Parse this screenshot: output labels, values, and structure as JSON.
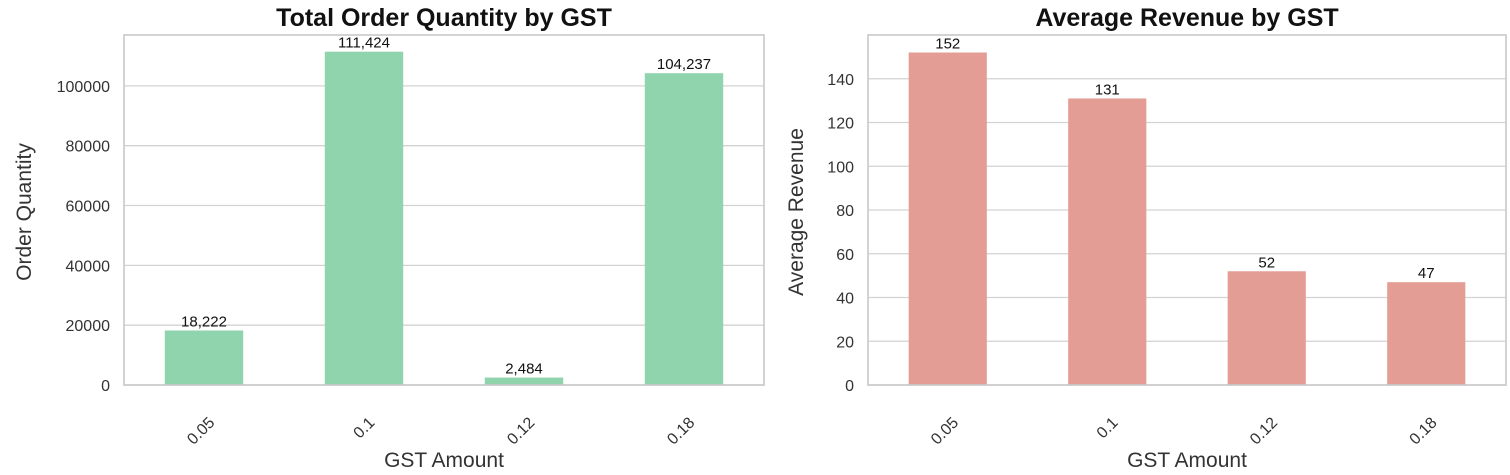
{
  "chart_data": [
    {
      "type": "bar",
      "title": "Total Order Quantity by GST",
      "xlabel": "GST Amount",
      "ylabel": "Order Quantity",
      "categories": [
        "0.05",
        "0.1",
        "0.12",
        "0.18"
      ],
      "values": [
        18222,
        111424,
        2484,
        104237
      ],
      "data_labels": [
        "18,222",
        "111,424",
        "2,484",
        "104,237"
      ],
      "yticks": [
        0,
        20000,
        40000,
        60000,
        80000,
        100000
      ],
      "ylim": [
        0,
        117000
      ],
      "grid": true,
      "x_tick_rotation": 45,
      "color": "#8fd4ad"
    },
    {
      "type": "bar",
      "title": "Average Revenue by GST",
      "xlabel": "GST Amount",
      "ylabel": "Average Revenue",
      "categories": [
        "0.05",
        "0.1",
        "0.12",
        "0.18"
      ],
      "values": [
        152,
        131,
        52,
        47
      ],
      "data_labels": [
        "152",
        "131",
        "52",
        "47"
      ],
      "yticks": [
        0,
        20,
        40,
        60,
        80,
        100,
        120,
        140
      ],
      "ylim": [
        0,
        160
      ],
      "grid": true,
      "x_tick_rotation": 45,
      "color": "#e39d95"
    }
  ]
}
